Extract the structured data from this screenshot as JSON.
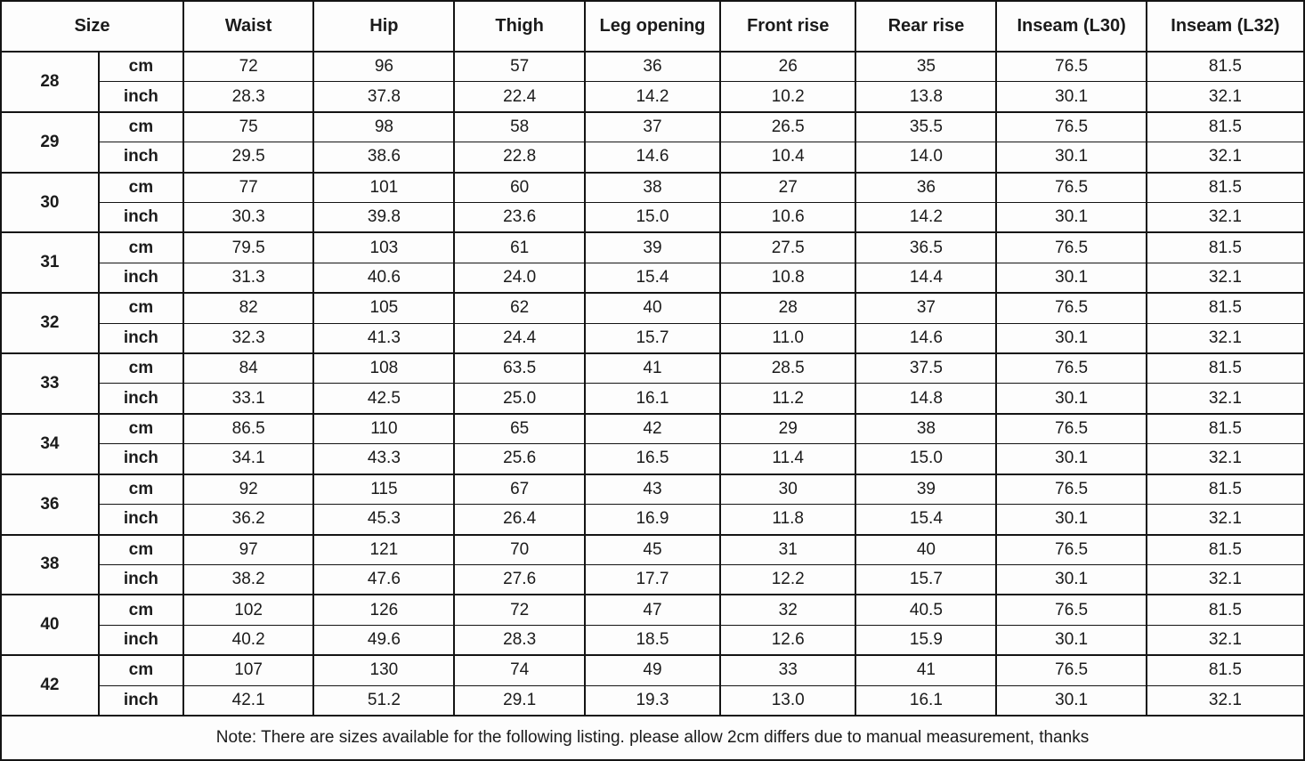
{
  "colors": {
    "border": "#141414",
    "text": "#1b1b1b",
    "background": "#fdfdfd"
  },
  "chart_data": {
    "type": "table",
    "size_header": "Size",
    "unit_labels": {
      "cm": "cm",
      "inch": "inch"
    },
    "measurement_headers": [
      "Waist",
      "Hip",
      "Thigh",
      "Leg opening",
      "Front rise",
      "Rear rise",
      "Inseam (L30)",
      "Inseam (L32)"
    ],
    "rows": [
      {
        "size": "28",
        "cm": [
          "72",
          "96",
          "57",
          "36",
          "26",
          "35",
          "76.5",
          "81.5"
        ],
        "inch": [
          "28.3",
          "37.8",
          "22.4",
          "14.2",
          "10.2",
          "13.8",
          "30.1",
          "32.1"
        ]
      },
      {
        "size": "29",
        "cm": [
          "75",
          "98",
          "58",
          "37",
          "26.5",
          "35.5",
          "76.5",
          "81.5"
        ],
        "inch": [
          "29.5",
          "38.6",
          "22.8",
          "14.6",
          "10.4",
          "14.0",
          "30.1",
          "32.1"
        ]
      },
      {
        "size": "30",
        "cm": [
          "77",
          "101",
          "60",
          "38",
          "27",
          "36",
          "76.5",
          "81.5"
        ],
        "inch": [
          "30.3",
          "39.8",
          "23.6",
          "15.0",
          "10.6",
          "14.2",
          "30.1",
          "32.1"
        ]
      },
      {
        "size": "31",
        "cm": [
          "79.5",
          "103",
          "61",
          "39",
          "27.5",
          "36.5",
          "76.5",
          "81.5"
        ],
        "inch": [
          "31.3",
          "40.6",
          "24.0",
          "15.4",
          "10.8",
          "14.4",
          "30.1",
          "32.1"
        ]
      },
      {
        "size": "32",
        "cm": [
          "82",
          "105",
          "62",
          "40",
          "28",
          "37",
          "76.5",
          "81.5"
        ],
        "inch": [
          "32.3",
          "41.3",
          "24.4",
          "15.7",
          "11.0",
          "14.6",
          "30.1",
          "32.1"
        ]
      },
      {
        "size": "33",
        "cm": [
          "84",
          "108",
          "63.5",
          "41",
          "28.5",
          "37.5",
          "76.5",
          "81.5"
        ],
        "inch": [
          "33.1",
          "42.5",
          "25.0",
          "16.1",
          "11.2",
          "14.8",
          "30.1",
          "32.1"
        ]
      },
      {
        "size": "34",
        "cm": [
          "86.5",
          "110",
          "65",
          "42",
          "29",
          "38",
          "76.5",
          "81.5"
        ],
        "inch": [
          "34.1",
          "43.3",
          "25.6",
          "16.5",
          "11.4",
          "15.0",
          "30.1",
          "32.1"
        ]
      },
      {
        "size": "36",
        "cm": [
          "92",
          "115",
          "67",
          "43",
          "30",
          "39",
          "76.5",
          "81.5"
        ],
        "inch": [
          "36.2",
          "45.3",
          "26.4",
          "16.9",
          "11.8",
          "15.4",
          "30.1",
          "32.1"
        ]
      },
      {
        "size": "38",
        "cm": [
          "97",
          "121",
          "70",
          "45",
          "31",
          "40",
          "76.5",
          "81.5"
        ],
        "inch": [
          "38.2",
          "47.6",
          "27.6",
          "17.7",
          "12.2",
          "15.7",
          "30.1",
          "32.1"
        ]
      },
      {
        "size": "40",
        "cm": [
          "102",
          "126",
          "72",
          "47",
          "32",
          "40.5",
          "76.5",
          "81.5"
        ],
        "inch": [
          "40.2",
          "49.6",
          "28.3",
          "18.5",
          "12.6",
          "15.9",
          "30.1",
          "32.1"
        ]
      },
      {
        "size": "42",
        "cm": [
          "107",
          "130",
          "74",
          "49",
          "33",
          "41",
          "76.5",
          "81.5"
        ],
        "inch": [
          "42.1",
          "51.2",
          "29.1",
          "19.3",
          "13.0",
          "16.1",
          "30.1",
          "32.1"
        ]
      }
    ],
    "note": "Note: There are sizes available for the following listing. please allow 2cm differs due to manual measurement, thanks"
  }
}
